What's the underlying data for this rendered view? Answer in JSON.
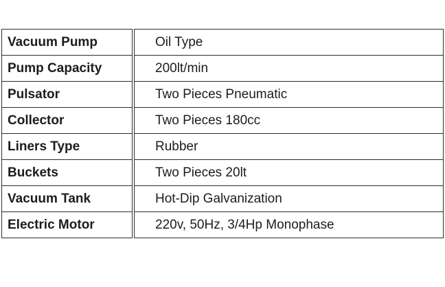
{
  "spec_table": {
    "rows": [
      {
        "label": "Vacuum Pump",
        "value": "Oil Type"
      },
      {
        "label": "Pump Capacity",
        "value": "200lt/min"
      },
      {
        "label": "Pulsator",
        "value": "Two Pieces Pneumatic"
      },
      {
        "label": "Collector",
        "value": "Two Pieces 180cc"
      },
      {
        "label": "Liners Type",
        "value": "Rubber"
      },
      {
        "label": "Buckets",
        "value": "Two Pieces 20lt"
      },
      {
        "label": "Vacuum Tank",
        "value": "Hot-Dip Galvanization"
      },
      {
        "label": "Electric Motor",
        "value": "220v, 50Hz, 3/4Hp Monophase"
      }
    ]
  }
}
